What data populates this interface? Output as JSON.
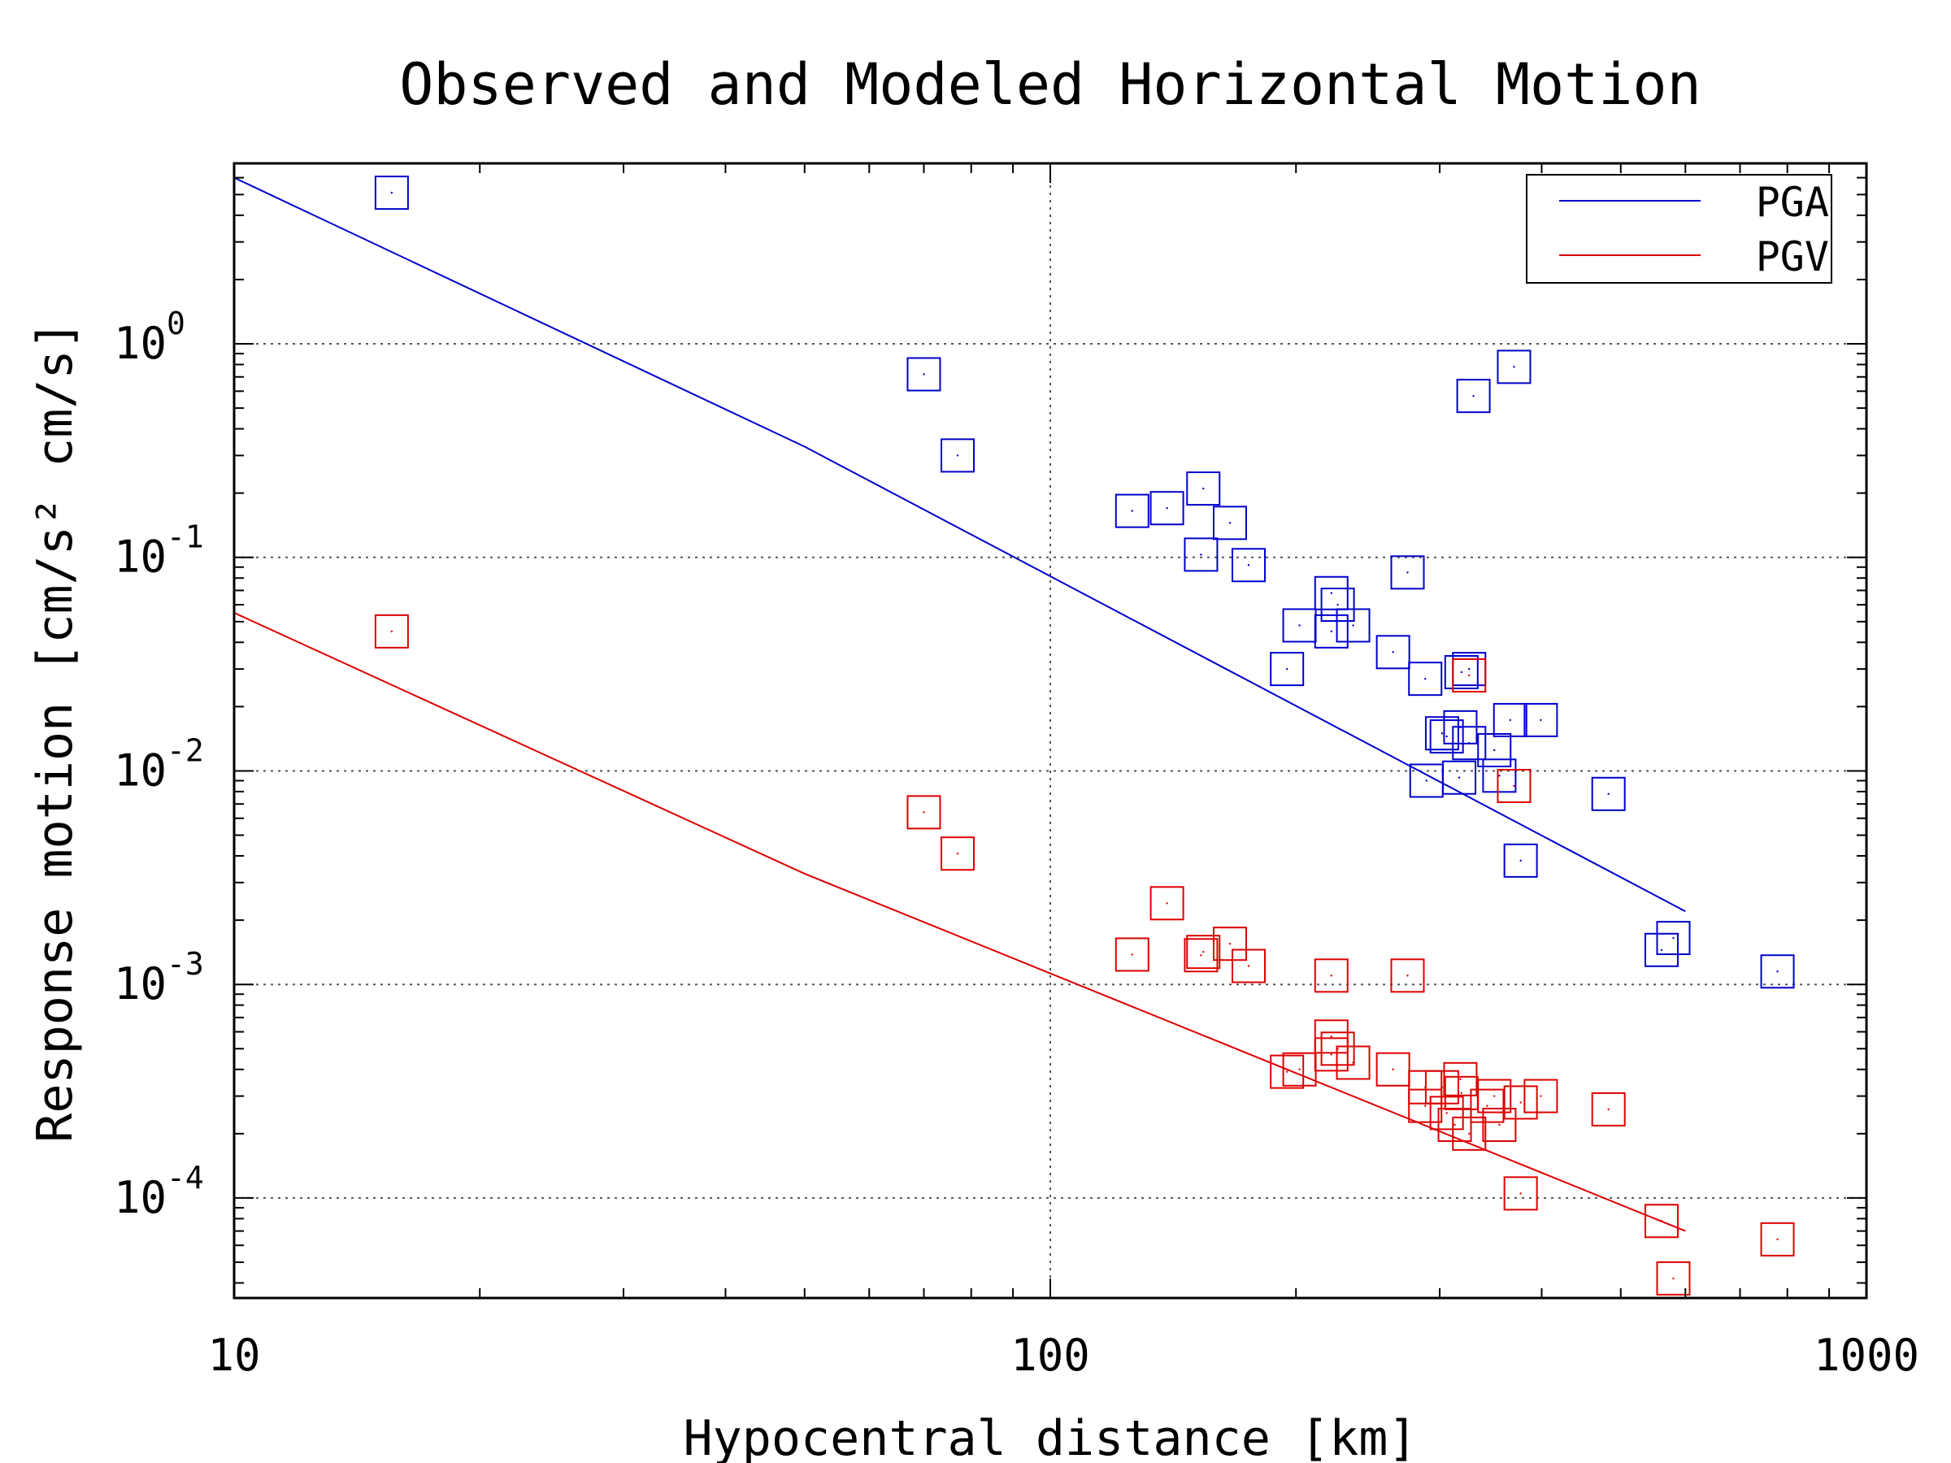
{
  "chart_data": {
    "type": "scatter",
    "title": "Observed and Modeled Horizontal Motion",
    "xlabel": "Hypocentral distance [km]",
    "ylabel": "Response motion [cm/s² cm/s]",
    "xscale": "log",
    "yscale": "log",
    "xlim": [
      10,
      1000
    ],
    "ylim": [
      3.4e-05,
      7
    ],
    "x_ticks": [
      {
        "value": 10,
        "label": "10"
      },
      {
        "value": 100,
        "label": "100"
      },
      {
        "value": 1000,
        "label": "1000"
      }
    ],
    "y_ticks": [
      {
        "value": 1,
        "base": "10",
        "exp": "0"
      },
      {
        "value": 0.1,
        "base": "10",
        "exp": "-1"
      },
      {
        "value": 0.01,
        "base": "10",
        "exp": "-2"
      },
      {
        "value": 0.001,
        "base": "10",
        "exp": "-3"
      },
      {
        "value": 0.0001,
        "base": "10",
        "exp": "-4"
      }
    ],
    "grid": true,
    "legend_position": "top-right",
    "series": [
      {
        "name": "PGA",
        "color": "#0000cc",
        "model_line": {
          "x": [
            10,
            50,
            600
          ],
          "y": [
            6.0,
            0.33,
            0.0022
          ]
        },
        "observed": [
          {
            "x": 15.6,
            "y": 5.1
          },
          {
            "x": 70,
            "y": 0.72
          },
          {
            "x": 77,
            "y": 0.3
          },
          {
            "x": 126,
            "y": 0.165
          },
          {
            "x": 139,
            "y": 0.17
          },
          {
            "x": 154,
            "y": 0.21
          },
          {
            "x": 166,
            "y": 0.145
          },
          {
            "x": 153,
            "y": 0.103
          },
          {
            "x": 175,
            "y": 0.092
          },
          {
            "x": 195,
            "y": 0.03
          },
          {
            "x": 202,
            "y": 0.048
          },
          {
            "x": 221,
            "y": 0.068
          },
          {
            "x": 225,
            "y": 0.06
          },
          {
            "x": 221,
            "y": 0.045
          },
          {
            "x": 235,
            "y": 0.048
          },
          {
            "x": 263,
            "y": 0.036
          },
          {
            "x": 274,
            "y": 0.085
          },
          {
            "x": 288,
            "y": 0.027
          },
          {
            "x": 326,
            "y": 0.03
          },
          {
            "x": 319,
            "y": 0.029
          },
          {
            "x": 302,
            "y": 0.015
          },
          {
            "x": 306,
            "y": 0.0145
          },
          {
            "x": 318,
            "y": 0.016
          },
          {
            "x": 326,
            "y": 0.0135
          },
          {
            "x": 350,
            "y": 0.0125
          },
          {
            "x": 289,
            "y": 0.009
          },
          {
            "x": 317,
            "y": 0.0093
          },
          {
            "x": 355,
            "y": 0.0095
          },
          {
            "x": 366,
            "y": 0.0173
          },
          {
            "x": 399,
            "y": 0.0173
          },
          {
            "x": 483,
            "y": 0.0078
          },
          {
            "x": 377,
            "y": 0.0038
          },
          {
            "x": 330,
            "y": 0.57
          },
          {
            "x": 370,
            "y": 0.78
          },
          {
            "x": 561,
            "y": 0.00145
          },
          {
            "x": 580,
            "y": 0.00165
          },
          {
            "x": 778,
            "y": 0.00115
          }
        ]
      },
      {
        "name": "PGV",
        "color": "#dd0000",
        "model_line": {
          "x": [
            10,
            50,
            600
          ],
          "y": [
            0.055,
            0.0033,
            7e-05
          ]
        },
        "observed": [
          {
            "x": 15.6,
            "y": 0.045
          },
          {
            "x": 70,
            "y": 0.0064
          },
          {
            "x": 77,
            "y": 0.0041
          },
          {
            "x": 126,
            "y": 0.00138
          },
          {
            "x": 139,
            "y": 0.0024
          },
          {
            "x": 154,
            "y": 0.00142
          },
          {
            "x": 166,
            "y": 0.00155
          },
          {
            "x": 153,
            "y": 0.00137
          },
          {
            "x": 175,
            "y": 0.00122
          },
          {
            "x": 195,
            "y": 0.00039
          },
          {
            "x": 202,
            "y": 0.0004
          },
          {
            "x": 221,
            "y": 0.0011
          },
          {
            "x": 221,
            "y": 0.00057
          },
          {
            "x": 225,
            "y": 0.0005
          },
          {
            "x": 221,
            "y": 0.00047
          },
          {
            "x": 235,
            "y": 0.00043
          },
          {
            "x": 263,
            "y": 0.0004
          },
          {
            "x": 274,
            "y": 0.0011
          },
          {
            "x": 288,
            "y": 0.00033
          },
          {
            "x": 288,
            "y": 0.00027
          },
          {
            "x": 302,
            "y": 0.00033
          },
          {
            "x": 306,
            "y": 0.00025
          },
          {
            "x": 313,
            "y": 0.00022
          },
          {
            "x": 318,
            "y": 0.00036
          },
          {
            "x": 319,
            "y": 0.00031
          },
          {
            "x": 326,
            "y": 0.0002
          },
          {
            "x": 326,
            "y": 0.028
          },
          {
            "x": 343,
            "y": 0.00027
          },
          {
            "x": 350,
            "y": 0.0003
          },
          {
            "x": 355,
            "y": 0.00022
          },
          {
            "x": 370,
            "y": 0.0085
          },
          {
            "x": 377,
            "y": 0.00028
          },
          {
            "x": 377,
            "y": 0.000105
          },
          {
            "x": 399,
            "y": 0.0003
          },
          {
            "x": 483,
            "y": 0.00026
          },
          {
            "x": 561,
            "y": 7.8e-05
          },
          {
            "x": 580,
            "y": 4.2e-05
          },
          {
            "x": 778,
            "y": 6.4e-05
          }
        ]
      }
    ]
  }
}
